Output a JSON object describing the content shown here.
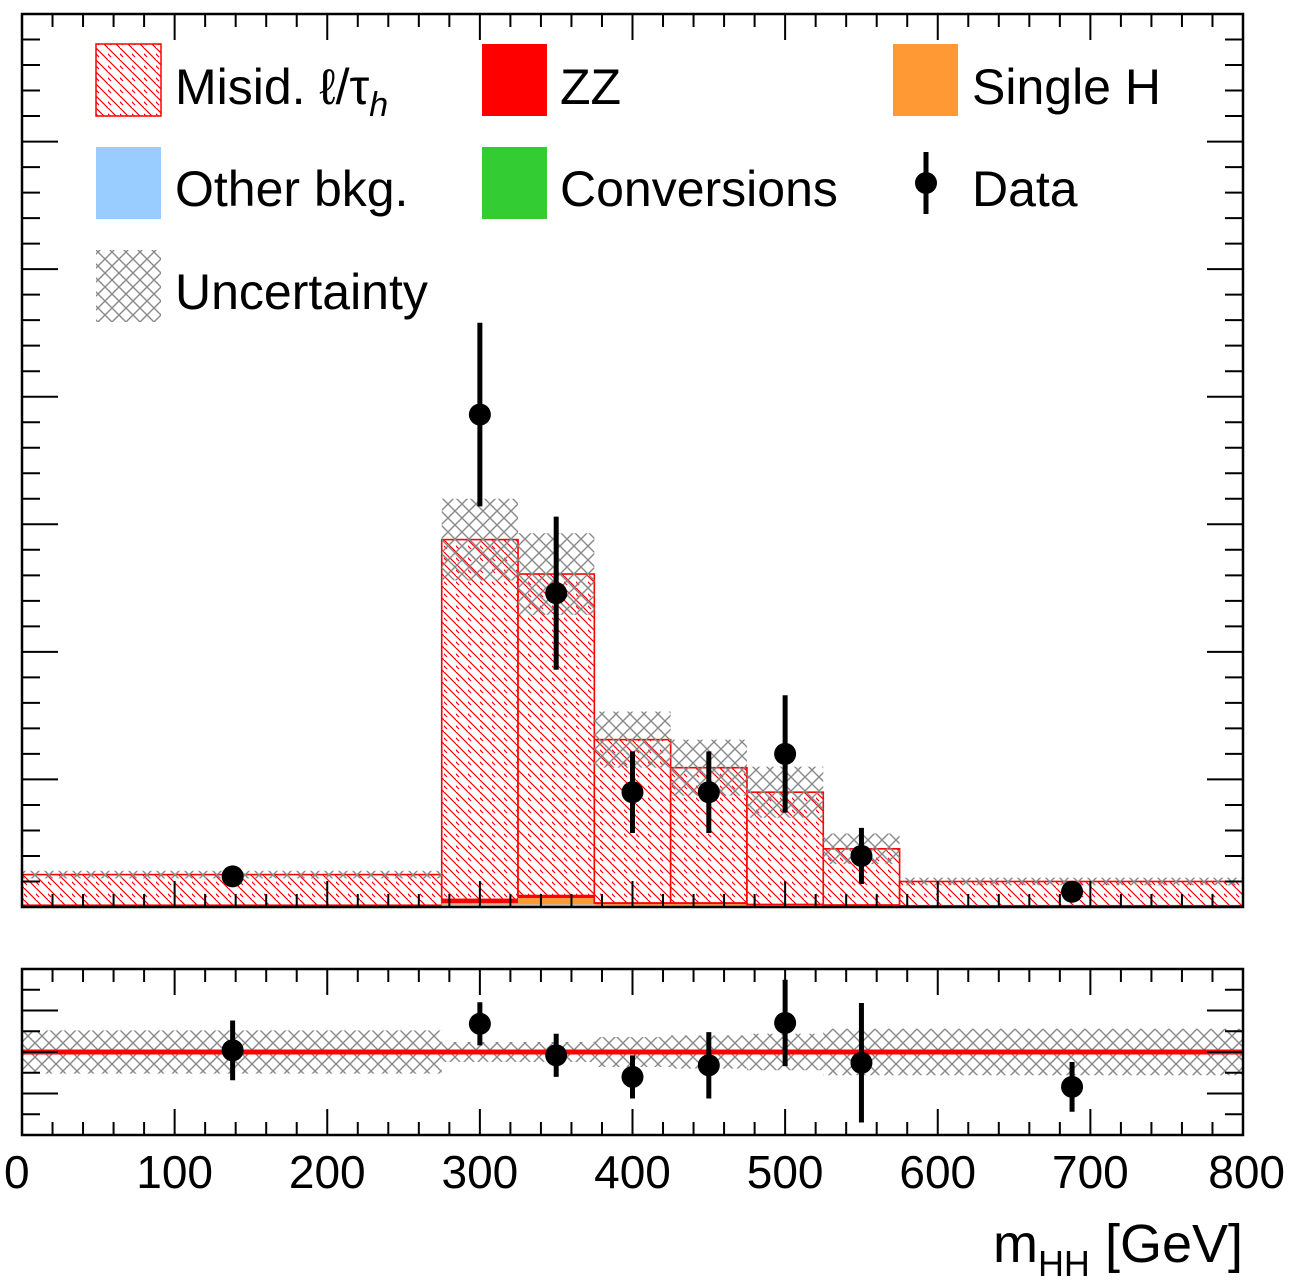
{
  "chart_data": {
    "type": "bar",
    "xlabel": "m",
    "xlabel_sub": "HH",
    "xlabel_unit": " [GeV]",
    "xlim": [
      0,
      800
    ],
    "xticks": [
      0,
      100,
      200,
      300,
      400,
      500,
      600,
      700,
      800
    ],
    "xtick_labels": [
      "0",
      "100",
      "200",
      "300",
      "400",
      "500",
      "600",
      "700",
      "800"
    ],
    "ylim_main": [
      0,
      35
    ],
    "ylim_ratio": [
      0,
      2
    ],
    "legend": {
      "placement": "top",
      "entries": [
        {
          "label": "Misid. ℓ/τ",
          "label_sub": "h",
          "style": "hatch",
          "color": "#ff0000"
        },
        {
          "label": "ZZ",
          "style": "fill",
          "color": "#ff0000"
        },
        {
          "label": "Single H",
          "style": "fill",
          "color": "#ff9933"
        },
        {
          "label": "Other bkg.",
          "style": "fill",
          "color": "#99ccff"
        },
        {
          "label": "Conversions",
          "style": "fill",
          "color": "#33cc33"
        },
        {
          "label": "Data",
          "style": "marker",
          "color": "#000000"
        },
        {
          "label": "Uncertainty",
          "style": "crosshatch",
          "color": "#888888"
        }
      ]
    },
    "bins": [
      {
        "lo": 0,
        "hi": 275,
        "misid": 1.2,
        "zz": 0,
        "singleh": 0,
        "other": 0.02,
        "conv": 0.05,
        "unc": 0.15
      },
      {
        "lo": 275,
        "hi": 325,
        "misid": 14.1,
        "zz": 0.15,
        "singleh": 0.05,
        "other": 0.05,
        "conv": 0.05,
        "unc": 1.6
      },
      {
        "lo": 325,
        "hi": 375,
        "misid": 12.6,
        "zz": 0.1,
        "singleh": 0.25,
        "other": 0.05,
        "conv": 0.05,
        "unc": 1.6
      },
      {
        "lo": 375,
        "hi": 425,
        "misid": 6.4,
        "zz": 0.05,
        "singleh": 0.05,
        "other": 0.03,
        "conv": 0.03,
        "unc": 1.1
      },
      {
        "lo": 425,
        "hi": 475,
        "misid": 5.3,
        "zz": 0.05,
        "singleh": 0.05,
        "other": 0.03,
        "conv": 0.03,
        "unc": 1.1
      },
      {
        "lo": 475,
        "hi": 525,
        "misid": 4.4,
        "zz": 0.03,
        "singleh": 0.03,
        "other": 0.02,
        "conv": 0.02,
        "unc": 1.0
      },
      {
        "lo": 525,
        "hi": 575,
        "misid": 2.2,
        "zz": 0.02,
        "singleh": 0.02,
        "other": 0.02,
        "conv": 0.02,
        "unc": 0.6
      },
      {
        "lo": 575,
        "hi": 800,
        "misid": 0.95,
        "zz": 0,
        "singleh": 0,
        "other": 0.02,
        "conv": 0.03,
        "unc": 0.15
      }
    ],
    "data": [
      {
        "x": 138,
        "y": 1.2,
        "err": 0
      },
      {
        "x": 300,
        "y": 19.3,
        "err": 3.6
      },
      {
        "x": 350,
        "y": 12.3,
        "err": 3.0
      },
      {
        "x": 400,
        "y": 4.5,
        "err": 1.6
      },
      {
        "x": 450,
        "y": 4.5,
        "err": 1.6
      },
      {
        "x": 500,
        "y": 6.0,
        "err": 2.3
      },
      {
        "x": 550,
        "y": 2.0,
        "err": 1.1
      },
      {
        "x": 688,
        "y": 0.6,
        "err": 0
      }
    ],
    "ratio": [
      {
        "x": 138,
        "y": 1.02,
        "err": 0.36
      },
      {
        "x": 300,
        "y": 1.34,
        "err": 0.26
      },
      {
        "x": 350,
        "y": 0.96,
        "err": 0.26
      },
      {
        "x": 400,
        "y": 0.7,
        "err": 0.26
      },
      {
        "x": 450,
        "y": 0.84,
        "err": 0.4
      },
      {
        "x": 500,
        "y": 1.35,
        "err": 0.52
      },
      {
        "x": 550,
        "y": 0.87,
        "err": 0.72
      },
      {
        "x": 688,
        "y": 0.58,
        "err": 0.3
      }
    ],
    "ratio_unc": [
      {
        "lo": 0,
        "hi": 275,
        "half": 0.26
      },
      {
        "lo": 275,
        "hi": 325,
        "half": 0.12
      },
      {
        "lo": 325,
        "hi": 375,
        "half": 0.12
      },
      {
        "lo": 375,
        "hi": 425,
        "half": 0.18
      },
      {
        "lo": 425,
        "hi": 475,
        "half": 0.2
      },
      {
        "lo": 475,
        "hi": 525,
        "half": 0.22
      },
      {
        "lo": 525,
        "hi": 575,
        "half": 0.28
      },
      {
        "lo": 575,
        "hi": 800,
        "half": 0.28
      }
    ],
    "ratio_line": 1.0
  }
}
